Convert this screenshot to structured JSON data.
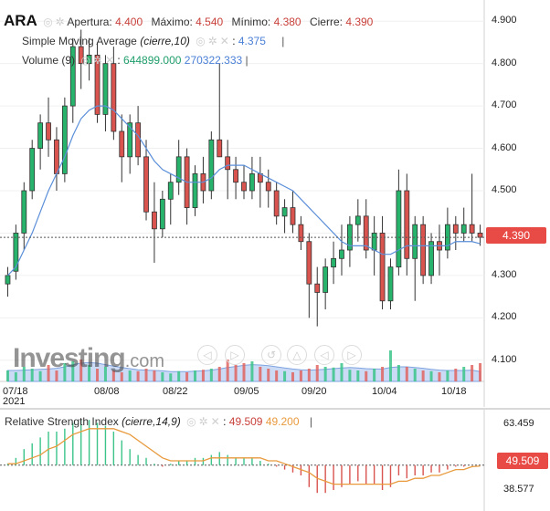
{
  "legend": {
    "symbol": "ARA",
    "open_label": "Apertura:",
    "open_value": "4.400",
    "high_label": "Máximo:",
    "high_value": "4.540",
    "low_label": "Mínimo:",
    "low_value": "4.380",
    "close_label": "Cierre:",
    "close_value": "4.390",
    "sma_label": "Simple Moving Average",
    "sma_params": "(cierre,10)",
    "sma_value": "4.375",
    "volume_label": "Volume",
    "volume_params": "(9)",
    "volume_value1": "644899.000",
    "volume_value2": "270322.333",
    "rsi_label": "Relative Strength Index",
    "rsi_params": "(cierre,14,9)",
    "rsi_value1": "49.509",
    "rsi_value2": "49.200"
  },
  "price_axis": {
    "ticks": [
      "4.900",
      "4.800",
      "4.700",
      "4.600",
      "4.500",
      "4.400",
      "4.300",
      "4.200",
      "4.100"
    ],
    "last_price": "4.390"
  },
  "x_axis": {
    "ticks": [
      "07/18",
      "08/08",
      "08/22",
      "09/05",
      "09/20",
      "10/04",
      "10/18"
    ],
    "year": "2021"
  },
  "rsi_axis": {
    "ticks": [
      "63.459",
      "38.577"
    ],
    "last_value": "49.509"
  },
  "watermark": {
    "brand": "Investing",
    "suffix": ".com"
  },
  "colors": {
    "up": "#27b36b",
    "down": "#d9534f",
    "sma": "#5b8fd9",
    "rsi": "#e89a3c",
    "volume_area": "#b9cdf2"
  },
  "chart_data": {
    "type": "candlestick",
    "price_ylim": [
      4.05,
      4.95
    ],
    "candles": [
      [
        4.28,
        4.32,
        4.25,
        4.3
      ],
      [
        4.31,
        4.42,
        4.29,
        4.4
      ],
      [
        4.4,
        4.52,
        4.36,
        4.5
      ],
      [
        4.5,
        4.62,
        4.48,
        4.6
      ],
      [
        4.6,
        4.68,
        4.55,
        4.66
      ],
      [
        4.66,
        4.72,
        4.58,
        4.62
      ],
      [
        4.62,
        4.65,
        4.5,
        4.54
      ],
      [
        4.54,
        4.72,
        4.52,
        4.7
      ],
      [
        4.7,
        4.86,
        4.66,
        4.84
      ],
      [
        4.84,
        4.88,
        4.74,
        4.8
      ],
      [
        4.8,
        4.86,
        4.76,
        4.82
      ],
      [
        4.82,
        4.85,
        4.66,
        4.68
      ],
      [
        4.68,
        4.82,
        4.64,
        4.8
      ],
      [
        4.8,
        4.84,
        4.62,
        4.64
      ],
      [
        4.64,
        4.68,
        4.52,
        4.58
      ],
      [
        4.58,
        4.68,
        4.54,
        4.66
      ],
      [
        4.66,
        4.7,
        4.56,
        4.58
      ],
      [
        4.58,
        4.62,
        4.43,
        4.45
      ],
      [
        4.45,
        4.52,
        4.33,
        4.41
      ],
      [
        4.41,
        4.5,
        4.39,
        4.48
      ],
      [
        4.48,
        4.54,
        4.42,
        4.52
      ],
      [
        4.52,
        4.62,
        4.49,
        4.58
      ],
      [
        4.58,
        4.6,
        4.42,
        4.46
      ],
      [
        4.46,
        4.56,
        4.44,
        4.54
      ],
      [
        4.54,
        4.58,
        4.47,
        4.5
      ],
      [
        4.5,
        4.64,
        4.48,
        4.62
      ],
      [
        4.62,
        4.8,
        4.58,
        4.58
      ],
      [
        4.58,
        4.62,
        4.48,
        4.55
      ],
      [
        4.55,
        4.58,
        4.48,
        4.52
      ],
      [
        4.52,
        4.56,
        4.48,
        4.5
      ],
      [
        4.5,
        4.58,
        4.48,
        4.54
      ],
      [
        4.54,
        4.58,
        4.46,
        4.52
      ],
      [
        4.52,
        4.55,
        4.46,
        4.5
      ],
      [
        4.5,
        4.52,
        4.42,
        4.44
      ],
      [
        4.44,
        4.48,
        4.4,
        4.46
      ],
      [
        4.46,
        4.5,
        4.4,
        4.42
      ],
      [
        4.42,
        4.44,
        4.36,
        4.38
      ],
      [
        4.38,
        4.4,
        4.2,
        4.28
      ],
      [
        4.28,
        4.32,
        4.18,
        4.26
      ],
      [
        4.26,
        4.34,
        4.22,
        4.32
      ],
      [
        4.32,
        4.38,
        4.28,
        4.34
      ],
      [
        4.34,
        4.42,
        4.3,
        4.36
      ],
      [
        4.36,
        4.44,
        4.32,
        4.42
      ],
      [
        4.42,
        4.48,
        4.38,
        4.44
      ],
      [
        4.44,
        4.48,
        4.34,
        4.36
      ],
      [
        4.36,
        4.44,
        4.3,
        4.4
      ],
      [
        4.4,
        4.44,
        4.22,
        4.24
      ],
      [
        4.24,
        4.34,
        4.22,
        4.32
      ],
      [
        4.32,
        4.55,
        4.3,
        4.5
      ],
      [
        4.5,
        4.54,
        4.3,
        4.34
      ],
      [
        4.34,
        4.44,
        4.24,
        4.42
      ],
      [
        4.42,
        4.44,
        4.28,
        4.3
      ],
      [
        4.3,
        4.4,
        4.28,
        4.38
      ],
      [
        4.38,
        4.42,
        4.3,
        4.36
      ],
      [
        4.36,
        4.46,
        4.34,
        4.42
      ],
      [
        4.42,
        4.44,
        4.36,
        4.4
      ],
      [
        4.4,
        4.46,
        4.38,
        4.42
      ],
      [
        4.42,
        4.54,
        4.38,
        4.4
      ],
      [
        4.4,
        4.42,
        4.37,
        4.39
      ]
    ],
    "sma": [
      4.3,
      4.32,
      4.36,
      4.4,
      4.45,
      4.5,
      4.54,
      4.58,
      4.63,
      4.67,
      4.69,
      4.7,
      4.7,
      4.69,
      4.67,
      4.65,
      4.63,
      4.6,
      4.57,
      4.55,
      4.54,
      4.53,
      4.52,
      4.52,
      4.52,
      4.53,
      4.55,
      4.56,
      4.56,
      4.56,
      4.55,
      4.54,
      4.53,
      4.52,
      4.51,
      4.5,
      4.48,
      4.46,
      4.44,
      4.42,
      4.4,
      4.38,
      4.37,
      4.37,
      4.37,
      4.36,
      4.35,
      4.35,
      4.36,
      4.37,
      4.37,
      4.37,
      4.37,
      4.37,
      4.37,
      4.38,
      4.38,
      4.38,
      4.375
    ],
    "volume": [
      0.3,
      0.25,
      0.4,
      0.35,
      0.28,
      0.45,
      0.3,
      0.5,
      0.55,
      0.6,
      0.45,
      0.35,
      0.4,
      0.3,
      0.25,
      0.3,
      0.28,
      0.35,
      0.3,
      0.25,
      0.22,
      0.28,
      0.25,
      0.3,
      0.32,
      0.35,
      0.4,
      0.6,
      0.45,
      0.5,
      0.55,
      0.4,
      0.35,
      0.3,
      0.28,
      0.25,
      0.3,
      0.35,
      0.45,
      0.4,
      0.38,
      0.5,
      0.32,
      0.3,
      0.28,
      0.35,
      0.4,
      0.85,
      0.45,
      0.4,
      0.35,
      0.3,
      0.28,
      0.25,
      0.3,
      0.35,
      0.4,
      0.45,
      0.5
    ],
    "volume_sma": [
      0.3,
      0.3,
      0.31,
      0.32,
      0.33,
      0.34,
      0.36,
      0.4,
      0.46,
      0.5,
      0.52,
      0.5,
      0.46,
      0.42,
      0.38,
      0.35,
      0.32,
      0.31,
      0.3,
      0.29,
      0.27,
      0.27,
      0.27,
      0.28,
      0.29,
      0.31,
      0.34,
      0.38,
      0.41,
      0.44,
      0.46,
      0.45,
      0.43,
      0.4,
      0.37,
      0.34,
      0.32,
      0.31,
      0.32,
      0.33,
      0.35,
      0.37,
      0.38,
      0.37,
      0.35,
      0.34,
      0.34,
      0.38,
      0.4,
      0.4,
      0.38,
      0.36,
      0.33,
      0.31,
      0.3,
      0.3,
      0.3,
      0.31,
      0.27
    ],
    "rsi_ylim": [
      36,
      66
    ],
    "rsi": [
      50,
      52,
      55,
      57,
      59,
      61,
      61,
      62,
      64,
      65,
      65,
      64,
      63,
      61,
      58,
      55,
      53,
      52,
      50,
      49,
      50,
      51,
      51,
      52,
      52,
      53,
      54,
      53,
      52,
      52,
      52,
      51,
      50,
      49,
      48,
      47,
      46,
      42,
      40,
      40,
      41,
      42,
      43,
      44,
      43,
      43,
      41,
      42,
      46,
      45,
      46,
      46,
      47,
      47,
      48,
      49,
      49,
      49.5,
      49.509
    ],
    "rsi_signal": [
      50,
      50,
      51,
      52,
      53,
      55,
      56,
      58,
      60,
      61,
      62,
      62,
      62,
      62,
      61,
      60,
      58,
      56,
      54,
      52,
      51,
      51,
      51,
      51,
      51,
      52,
      52,
      52,
      52,
      52,
      52,
      52,
      51,
      51,
      50,
      49,
      48,
      47,
      45,
      44,
      43,
      43,
      43,
      43,
      43,
      43,
      43,
      43,
      44,
      44,
      45,
      45,
      46,
      46,
      47,
      48,
      48,
      49,
      49.2
    ]
  }
}
